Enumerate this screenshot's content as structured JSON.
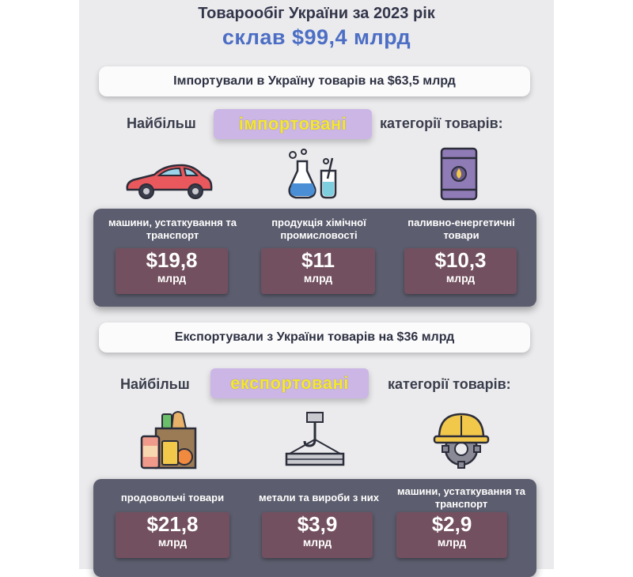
{
  "title": {
    "line1": "Товарообіг України за 2023 рік",
    "line2": "склав $99,4 млрд"
  },
  "imports": {
    "banner": "Імпортували в Україну товарів на $63,5 млрд",
    "sub_left": "Найбільш",
    "highlight": "імпортовані",
    "sub_right": "категорії товарів:",
    "items": [
      {
        "category": "машини, устаткування та транспорт",
        "value": "$19,8",
        "unit": "млрд",
        "icon": "car-icon"
      },
      {
        "category": "продукція хімічної промисловості",
        "value": "$11",
        "unit": "млрд",
        "icon": "chemistry-flask-icon"
      },
      {
        "category": "паливно-енергетичні товари",
        "value": "$10,3",
        "unit": "млрд",
        "icon": "fuel-barrel-icon"
      }
    ]
  },
  "exports": {
    "banner": "Експортували з України товарів на $36 млрд",
    "sub_left": "Найбільш",
    "highlight": "експортовані",
    "sub_right": "категорії товарів:",
    "items": [
      {
        "category": "продовольчі товари",
        "value": "$21,8",
        "unit": "млрд",
        "icon": "grocery-bag-icon"
      },
      {
        "category": "метали та вироби з них",
        "value": "$3,9",
        "unit": "млрд",
        "icon": "crane-hook-icon"
      },
      {
        "category": "машини, устаткування та транспорт",
        "value": "$2,9",
        "unit": "млрд",
        "icon": "hardhat-gear-icon"
      }
    ]
  },
  "colors": {
    "title_accent": "#4c6ec4",
    "highlight_text": "#f4e733",
    "highlight_bg": "#cbb6e6",
    "card_bg": "#5c5d6e",
    "value_box": "#73505f"
  }
}
